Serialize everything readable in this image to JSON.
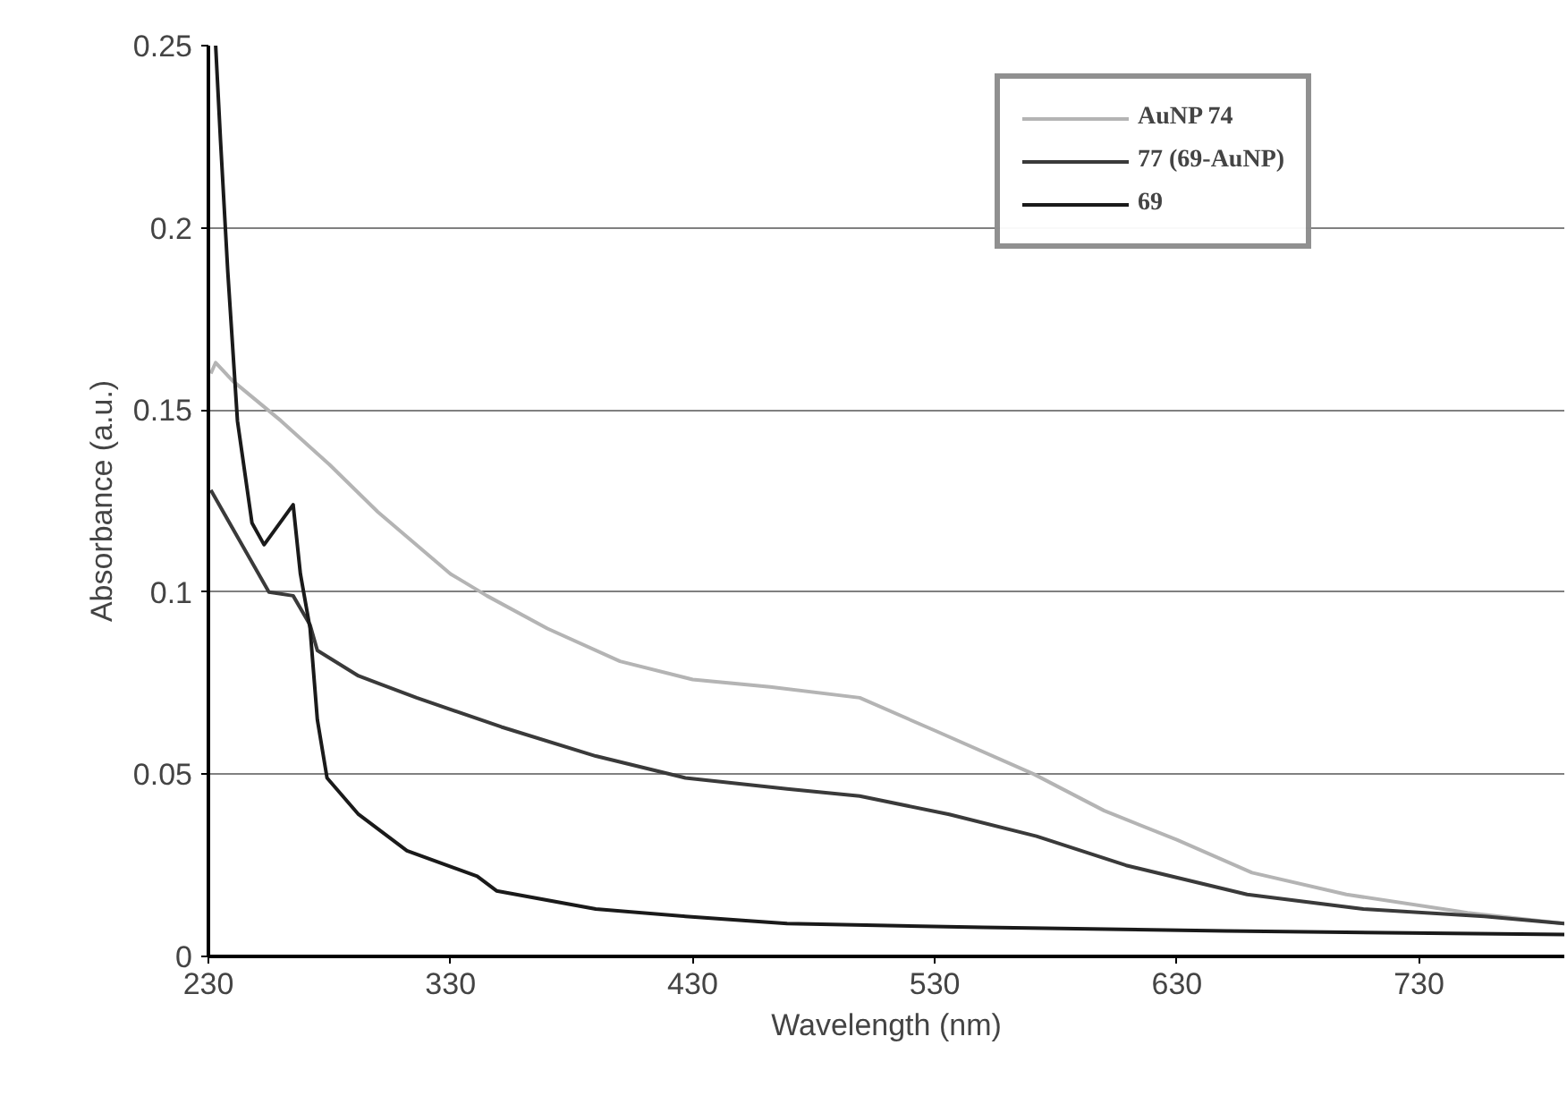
{
  "chart_data": {
    "type": "line",
    "xlabel": "Wavelength (nm)",
    "ylabel": "Absorbance (a.u.)",
    "xlim": [
      230,
      790
    ],
    "xticks": [
      230,
      330,
      430,
      530,
      630,
      730
    ],
    "ylim": [
      0,
      0.25
    ],
    "yticks": [
      0,
      0.05,
      0.1,
      0.15,
      0.2,
      0.25
    ],
    "grid": "y",
    "legend": "top right",
    "marker": "none",
    "line_style": "solid",
    "series": [
      {
        "name": "AuNP 74",
        "color": "#b4b4b4",
        "x": [
          231,
          233,
          240,
          260,
          280,
          300,
          330,
          345,
          370,
          400,
          430,
          462,
          499,
          530,
          571,
          600,
          630,
          661,
          700,
          750,
          790
        ],
        "values": [
          0.16,
          0.163,
          0.158,
          0.147,
          0.135,
          0.122,
          0.105,
          0.099,
          0.09,
          0.081,
          0.076,
          0.074,
          0.071,
          0.062,
          0.05,
          0.04,
          0.032,
          0.023,
          0.017,
          0.012,
          0.009
        ]
      },
      {
        "name": "77 (69-AuNP)",
        "color": "#3a3a3a",
        "x": [
          231,
          243,
          255,
          265,
          272,
          275,
          292,
          316,
          351,
          390,
          427,
          469,
          499,
          536,
          572,
          609,
          659,
          707,
          757,
          790
        ],
        "values": [
          0.128,
          0.114,
          0.1,
          0.099,
          0.091,
          0.084,
          0.077,
          0.071,
          0.063,
          0.055,
          0.049,
          0.046,
          0.044,
          0.039,
          0.033,
          0.025,
          0.017,
          0.013,
          0.011,
          0.009
        ]
      },
      {
        "name": "69",
        "color": "#1a1a1a",
        "x": [
          233,
          235,
          238,
          242,
          248,
          253,
          265,
          268,
          272,
          275,
          279,
          292,
          312,
          341,
          349,
          390,
          427,
          469,
          550,
          650,
          790
        ],
        "values": [
          0.25,
          0.224,
          0.188,
          0.147,
          0.119,
          0.113,
          0.124,
          0.105,
          0.09,
          0.065,
          0.049,
          0.039,
          0.029,
          0.022,
          0.018,
          0.013,
          0.011,
          0.009,
          0.008,
          0.007,
          0.006
        ]
      }
    ]
  }
}
